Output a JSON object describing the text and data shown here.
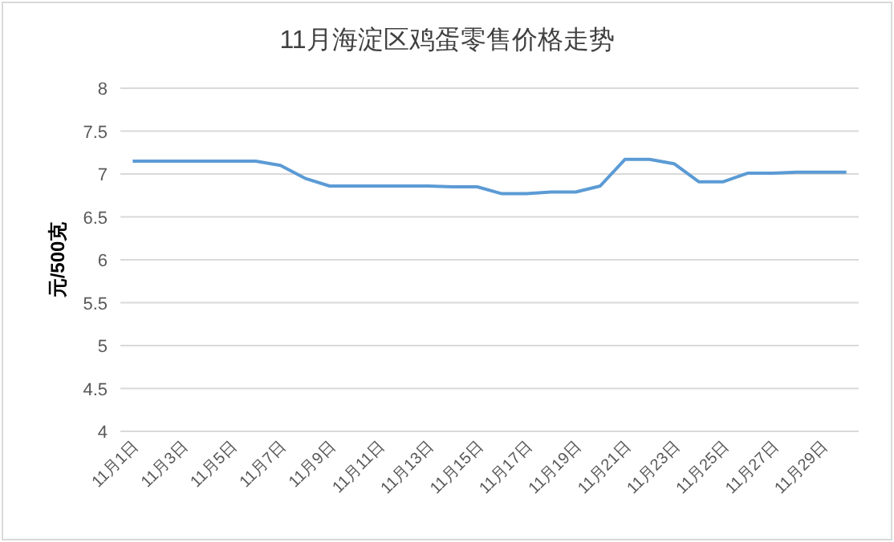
{
  "chart_data": {
    "type": "line",
    "title": "11月海淀区鸡蛋零售价格走势",
    "ylabel": "元/500克",
    "categories": [
      "11月1日",
      null,
      "11月3日",
      null,
      "11月5日",
      null,
      "11月7日",
      null,
      "11月9日",
      null,
      "11月11日",
      null,
      "11月13日",
      null,
      "11月15日",
      null,
      "11月17日",
      null,
      "11月19日",
      null,
      "11月21日",
      null,
      "11月23日",
      null,
      "11月25日",
      null,
      "11月27日",
      null,
      "11月29日",
      null
    ],
    "series": [
      {
        "color": "#5b9bd5",
        "values": [
          7.15,
          7.15,
          7.15,
          7.15,
          7.15,
          7.15,
          7.1,
          6.95,
          6.86,
          6.86,
          6.86,
          6.86,
          6.86,
          6.85,
          6.85,
          6.77,
          6.77,
          6.79,
          6.79,
          6.86,
          7.17,
          7.17,
          7.12,
          6.91,
          6.91,
          7.01,
          7.01,
          7.02,
          7.02,
          7.02
        ]
      }
    ],
    "ylim": [
      4,
      8
    ],
    "yticks": [
      4,
      4.5,
      5,
      5.5,
      6,
      6.5,
      7,
      7.5,
      8
    ],
    "grid": "y",
    "marker": "none",
    "line_style": "solid"
  }
}
